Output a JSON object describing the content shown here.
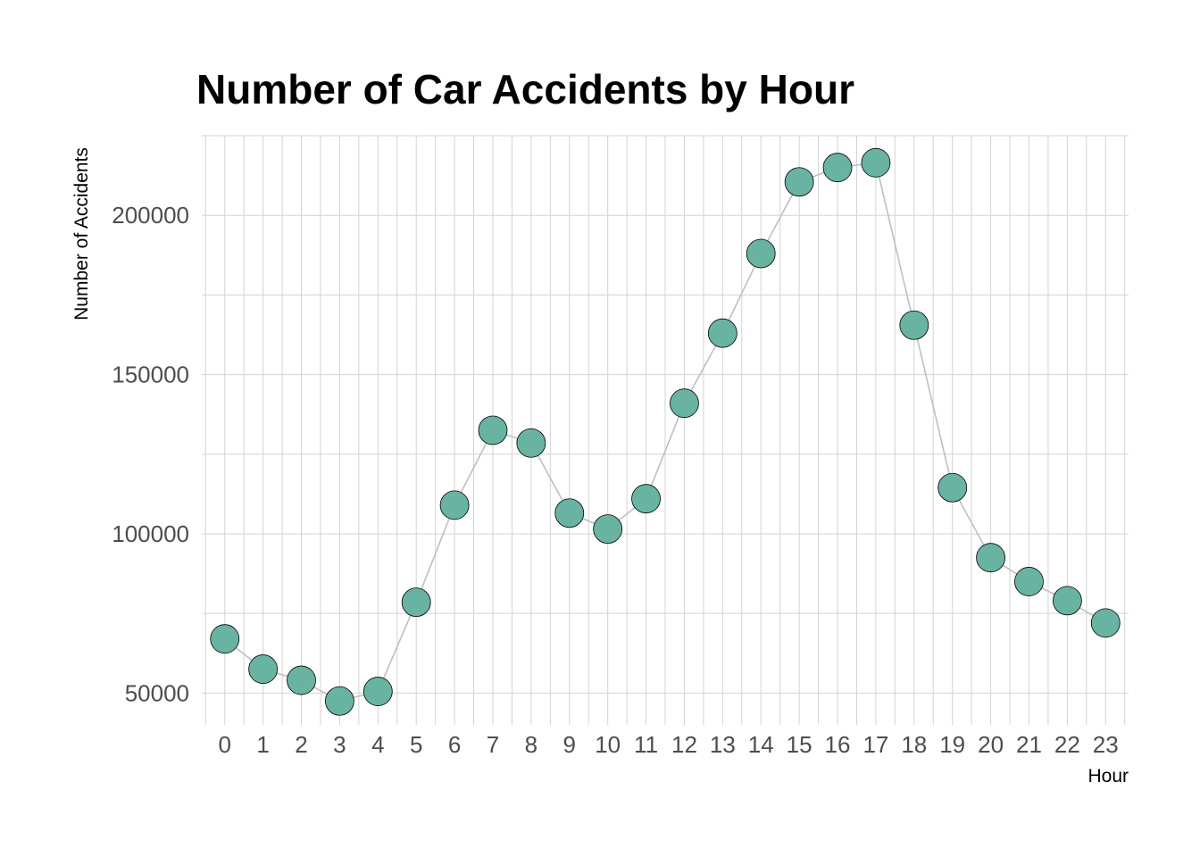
{
  "chart_data": {
    "type": "line",
    "title": "Number of Car Accidents by Hour",
    "xlabel": "Hour",
    "ylabel": "Number of Accidents",
    "x": [
      0,
      1,
      2,
      3,
      4,
      5,
      6,
      7,
      8,
      9,
      10,
      11,
      12,
      13,
      14,
      15,
      16,
      17,
      18,
      19,
      20,
      21,
      22,
      23
    ],
    "x_tick_labels": [
      "0",
      "1",
      "2",
      "3",
      "4",
      "5",
      "6",
      "7",
      "8",
      "9",
      "10",
      "11",
      "12",
      "13",
      "14",
      "15",
      "16",
      "17",
      "18",
      "19",
      "20",
      "21",
      "22",
      "23"
    ],
    "y": [
      67000,
      57500,
      54000,
      47500,
      50500,
      78500,
      109000,
      132500,
      128500,
      106500,
      101500,
      111000,
      141000,
      163000,
      188000,
      210500,
      215000,
      216500,
      165500,
      114500,
      92500,
      85000,
      79000,
      72000
    ],
    "y_ticks": [
      50000,
      100000,
      150000,
      200000
    ],
    "y_tick_labels": [
      "50000",
      "100000",
      "150000",
      "200000"
    ],
    "xlim": [
      -0.6,
      23.6
    ],
    "ylim": [
      40000,
      225000
    ],
    "grid": true,
    "legend": "none",
    "colors": {
      "point_fill": "#69b3a2",
      "point_stroke": "#000000",
      "line": "#bfbfbf",
      "grid": "#d3d3d3"
    }
  }
}
